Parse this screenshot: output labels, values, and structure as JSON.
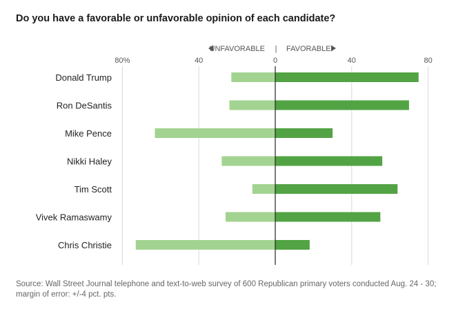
{
  "chart_data": {
    "type": "bar",
    "orientation": "horizontal-diverging",
    "title": "Do you have a favorable or unfavorable opinion of each candidate?",
    "legend": {
      "negative": "UNFAVORABLE",
      "positive": "FAVORABLE",
      "separator": "|"
    },
    "x_ticks_left": [
      "80%",
      "40"
    ],
    "x_ticks_right": [
      "0",
      "40",
      "80"
    ],
    "xlim": [
      -80,
      80
    ],
    "grid": true,
    "categories": [
      "Donald Trump",
      "Ron DeSantis",
      "Mike Pence",
      "Nikki Haley",
      "Tim Scott",
      "Vivek Ramaswamy",
      "Chris Christie"
    ],
    "series": [
      {
        "name": "UNFAVORABLE",
        "values": [
          23,
          24,
          63,
          28,
          12,
          26,
          73
        ]
      },
      {
        "name": "FAVORABLE",
        "values": [
          75,
          70,
          30,
          56,
          64,
          55,
          18
        ]
      }
    ],
    "colors": {
      "unfavorable": "#a3d391",
      "favorable": "#52a344",
      "grid": "#d9d9d9",
      "axis": "#222222"
    },
    "source": "Source: Wall Street Journal telephone and text-to-web survey of 600 Republican primary voters conducted Aug. 24 - 30; margin of error: +/-4 pct. pts."
  }
}
